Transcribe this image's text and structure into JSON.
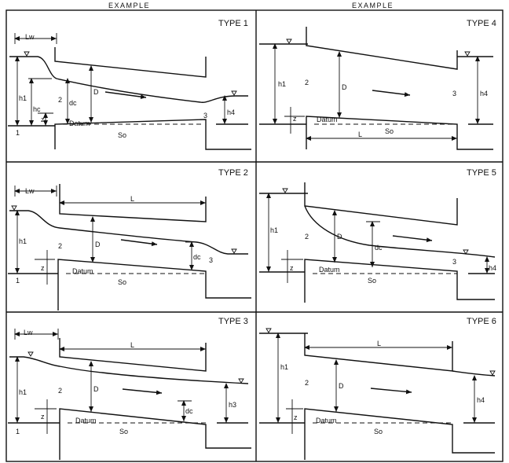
{
  "headers": [
    "EXAMPLE",
    "EXAMPLE"
  ],
  "panels": [
    {
      "type_label": "TYPE 1",
      "lw": "Lw",
      "h1": "h1",
      "hc": "hc",
      "dc": "dc",
      "d": "D",
      "z": "z",
      "datum": "Datum",
      "so": "So",
      "h4": "h4",
      "sec1": "1",
      "sec2": "2",
      "sec3": "3"
    },
    {
      "type_label": "TYPE 4",
      "h1": "h1",
      "d": "D",
      "z": "z",
      "datum": "Datum",
      "l": "L",
      "so": "So",
      "h4": "h4",
      "sec2": "2",
      "sec3": "3"
    },
    {
      "type_label": "TYPE 2",
      "lw": "Lw",
      "l": "L",
      "h1": "h1",
      "d": "D",
      "z": "z",
      "datum": "Datum",
      "so": "So",
      "dc": "dc",
      "sec1": "1",
      "sec2": "2",
      "sec3": "3"
    },
    {
      "type_label": "TYPE 5",
      "h1": "h1",
      "d": "D",
      "dc": "dc",
      "z": "z",
      "datum": "Datum",
      "so": "So",
      "h4": "h4",
      "sec2": "2",
      "sec3": "3"
    },
    {
      "type_label": "TYPE 3",
      "lw": "Lw",
      "l": "L",
      "h1": "h1",
      "d": "D",
      "z": "z",
      "datum": "Datum",
      "so": "So",
      "dc": "dc",
      "h3": "h3",
      "sec1": "1",
      "sec2": "2"
    },
    {
      "type_label": "TYPE 6",
      "l": "L",
      "h1": "h1",
      "d": "D",
      "z": "z",
      "datum": "Datum",
      "so": "So",
      "h4": "h4",
      "sec2": "2"
    }
  ]
}
